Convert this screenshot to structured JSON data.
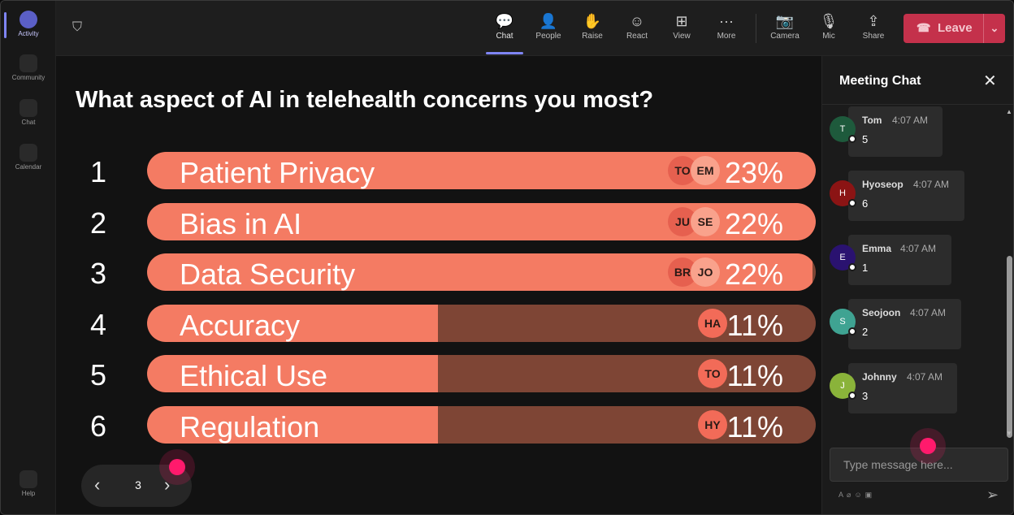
{
  "rail": {
    "items": [
      {
        "label": "Activity",
        "icon": "bell-icon"
      },
      {
        "label": "Community",
        "icon": "community-icon"
      },
      {
        "label": "Chat",
        "icon": "chat-icon"
      },
      {
        "label": "Calendar",
        "icon": "calendar-icon"
      },
      {
        "label": "Help",
        "icon": "help-icon"
      }
    ]
  },
  "toolbar": {
    "buttons": [
      {
        "label": "Chat",
        "glyph": "💬"
      },
      {
        "label": "People",
        "glyph": "👤"
      },
      {
        "label": "Raise",
        "glyph": "✋"
      },
      {
        "label": "React",
        "glyph": "☺"
      },
      {
        "label": "View",
        "glyph": "⊞"
      },
      {
        "label": "More",
        "glyph": "···"
      },
      {
        "label": "Camera",
        "glyph": "📷"
      },
      {
        "label": "Mic",
        "glyph": "🎙"
      },
      {
        "label": "Share",
        "glyph": "⇪"
      }
    ],
    "leave_label": "Leave"
  },
  "poll": {
    "question": "What aspect of AI in telehealth concerns you most?",
    "page": "3",
    "options": [
      {
        "rank": "1",
        "label": "Patient Privacy",
        "percent": "23%",
        "share": 0.23,
        "avatars": [
          "TO",
          "EM"
        ]
      },
      {
        "rank": "2",
        "label": "Bias in AI",
        "percent": "22%",
        "share": 0.22,
        "avatars": [
          "JU",
          "SE"
        ]
      },
      {
        "rank": "3",
        "label": "Data Security",
        "percent": "22%",
        "share": 0.22,
        "avatars": [
          "BR",
          "JO"
        ]
      },
      {
        "rank": "4",
        "label": "Accuracy",
        "percent": "11%",
        "share": 0.11,
        "avatars": [
          "HA"
        ]
      },
      {
        "rank": "5",
        "label": "Ethical Use",
        "percent": "11%",
        "share": 0.11,
        "avatars": [
          "TO"
        ]
      },
      {
        "rank": "6",
        "label": "Regulation",
        "percent": "11%",
        "share": 0.11,
        "avatars": [
          "HY"
        ]
      }
    ]
  },
  "chat": {
    "title": "Meeting Chat",
    "placeholder": "Type message here...",
    "messages": [
      {
        "initial": "T",
        "name": "Tom",
        "time": "4:07 AM",
        "text": "5",
        "color": "#1e5a3c"
      },
      {
        "initial": "H",
        "name": "Hyoseop",
        "time": "4:07 AM",
        "text": "6",
        "color": "#8b1414"
      },
      {
        "initial": "E",
        "name": "Emma",
        "time": "4:07 AM",
        "text": "1",
        "color": "#2a1270"
      },
      {
        "initial": "S",
        "name": "Seojoon",
        "time": "4:07 AM",
        "text": "2",
        "color": "#3fa392"
      },
      {
        "initial": "J",
        "name": "Johnny",
        "time": "4:07 AM",
        "text": "3",
        "color": "#8ab33a"
      }
    ]
  },
  "colors": {
    "bar_fill": "#f47b63",
    "bar_track": "#7e4535",
    "leave": "#c4314b",
    "accent": "#7f85f5"
  }
}
